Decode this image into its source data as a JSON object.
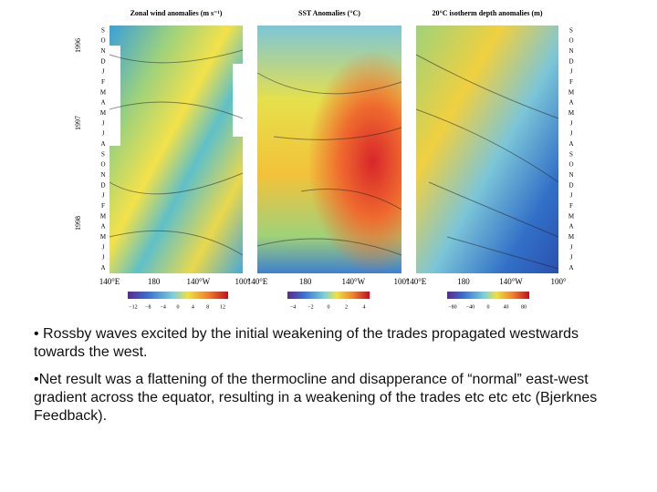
{
  "figure": {
    "panels": [
      {
        "title": "Zonal wind anomalies (m s⁻¹)",
        "colorbar_ticks": [
          "−12",
          "−8",
          "−4",
          "0",
          "4",
          "8",
          "12"
        ]
      },
      {
        "title": "SST Anomalies (°C)",
        "colorbar_ticks": [
          "−4",
          "−2",
          "0",
          "2",
          "4"
        ]
      },
      {
        "title": "20°C isotherm depth anomalies (m)",
        "colorbar_ticks": [
          "−80",
          "−40",
          "0",
          "40",
          "80"
        ]
      }
    ],
    "x_labels": [
      "140°E",
      "180",
      "140°W",
      "100°"
    ],
    "months": [
      "S",
      "O",
      "N",
      "D",
      "J",
      "F",
      "M",
      "A",
      "M",
      "J",
      "J",
      "A",
      "S",
      "O",
      "N",
      "D",
      "J",
      "F",
      "M",
      "A",
      "M",
      "J",
      "J",
      "A"
    ],
    "years": [
      "1996",
      "1997",
      "1998"
    ]
  },
  "bullets": [
    "• Rossby waves excited by the initial weakening of the trades propagated westwards towards the west.",
    "•Net result was a flattening of the thermocline and disapperance of “normal” east-west gradient across the equator, resulting in a weakening of the trades etc etc etc (Bjerknes Feedback)."
  ]
}
